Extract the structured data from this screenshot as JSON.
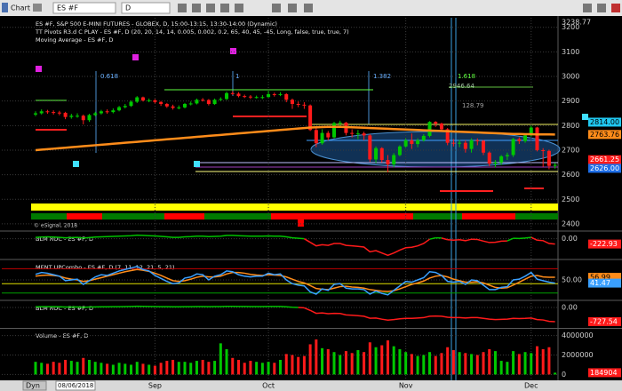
{
  "window": {
    "title": "Chart",
    "symbol": "ES #F",
    "interval": "D",
    "mode": "Dyn",
    "start_date": "08/06/2018"
  },
  "chart_data": [
    {
      "type": "candlestick",
      "title": "ES #F, S&P 500 E-MINI FUTURES - GLOBEX, D, 15:00-13:15, 13:30-14:00 (Dynamic)",
      "subtitles": [
        "TT Pivots R3.d C PLAY - ES #F, D (20, 20, 14, 14, 0.005, 0.002, 0.2, 65, 40, 45, -45, Long, false, true, true, 7)",
        "Moving Average - ES #F, D"
      ],
      "categories": [
        null,
        null,
        null,
        null,
        null,
        null,
        null,
        null,
        null,
        null,
        null,
        null,
        null,
        null,
        null,
        null,
        null,
        null,
        null,
        null,
        "Sep",
        null,
        null,
        null,
        null,
        null,
        null,
        null,
        null,
        null,
        null,
        null,
        null,
        null,
        null,
        null,
        null,
        null,
        null,
        "Oct",
        null,
        null,
        null,
        null,
        null,
        null,
        null,
        null,
        null,
        null,
        null,
        null,
        null,
        null,
        null,
        null,
        null,
        null,
        null,
        null,
        null,
        null,
        "Nov",
        null,
        null,
        null,
        null,
        null,
        null,
        null,
        null,
        null,
        null,
        null,
        null,
        null,
        null,
        null,
        null,
        null,
        null,
        null,
        null,
        "Dec",
        null,
        null,
        null,
        null
      ],
      "open": [
        2845,
        2850,
        2858,
        2855,
        2853,
        2852,
        2835,
        2840,
        2840,
        2822,
        2843,
        2850,
        2858,
        2855,
        2862,
        2875,
        2880,
        2897,
        2915,
        2902,
        2903,
        2896,
        2888,
        2878,
        2872,
        2874,
        2888,
        2890,
        2905,
        2904,
        2888,
        2905,
        2908,
        2932,
        2930,
        2920,
        2918,
        2915,
        2916,
        2916,
        2928,
        2925,
        2928,
        2905,
        2888,
        2885,
        2882,
        2782,
        2728,
        2770,
        2752,
        2810,
        2812,
        2770,
        2768,
        2768,
        2760,
        2662,
        2708,
        2660,
        2642,
        2680,
        2715,
        2740,
        2725,
        2740,
        2758,
        2815,
        2808,
        2785,
        2730,
        2728,
        2730,
        2705,
        2740,
        2738,
        2690,
        2645,
        2650,
        2675,
        2680,
        2745,
        2737,
        2760,
        2792,
        2700,
        2697,
        2636
      ],
      "high": [
        2858,
        2866,
        2864,
        2862,
        2860,
        2856,
        2848,
        2850,
        2845,
        2848,
        2856,
        2864,
        2866,
        2870,
        2880,
        2888,
        2902,
        2920,
        2918,
        2910,
        2908,
        2900,
        2892,
        2885,
        2882,
        2892,
        2898,
        2910,
        2912,
        2908,
        2910,
        2915,
        2938,
        2940,
        2936,
        2926,
        2924,
        2922,
        2924,
        2942,
        2934,
        2936,
        2932,
        2910,
        2898,
        2895,
        2886,
        2790,
        2785,
        2778,
        2815,
        2820,
        2815,
        2785,
        2782,
        2775,
        2765,
        2715,
        2712,
        2680,
        2688,
        2720,
        2748,
        2768,
        2748,
        2765,
        2818,
        2818,
        2812,
        2790,
        2745,
        2742,
        2740,
        2748,
        2748,
        2742,
        2695,
        2660,
        2680,
        2690,
        2750,
        2752,
        2765,
        2800,
        2795,
        2708,
        2702,
        2648
      ],
      "low": [
        2838,
        2845,
        2848,
        2845,
        2842,
        2826,
        2828,
        2832,
        2805,
        2815,
        2838,
        2845,
        2848,
        2850,
        2858,
        2870,
        2876,
        2892,
        2898,
        2895,
        2890,
        2880,
        2872,
        2865,
        2866,
        2870,
        2882,
        2886,
        2898,
        2882,
        2884,
        2900,
        2904,
        2925,
        2915,
        2912,
        2908,
        2910,
        2908,
        2914,
        2918,
        2920,
        2895,
        2868,
        2875,
        2868,
        2778,
        2712,
        2722,
        2740,
        2748,
        2795,
        2760,
        2752,
        2745,
        2740,
        2652,
        2648,
        2650,
        2610,
        2630,
        2675,
        2710,
        2705,
        2712,
        2735,
        2752,
        2795,
        2775,
        2720,
        2715,
        2712,
        2690,
        2690,
        2720,
        2680,
        2635,
        2630,
        2640,
        2660,
        2672,
        2725,
        2730,
        2755,
        2695,
        2632,
        2622,
        2625
      ],
      "close": [
        2850,
        2858,
        2855,
        2853,
        2852,
        2835,
        2840,
        2840,
        2822,
        2843,
        2850,
        2858,
        2855,
        2862,
        2875,
        2880,
        2897,
        2915,
        2902,
        2903,
        2896,
        2888,
        2878,
        2872,
        2874,
        2888,
        2890,
        2905,
        2904,
        2888,
        2905,
        2908,
        2932,
        2930,
        2920,
        2918,
        2915,
        2916,
        2916,
        2928,
        2925,
        2928,
        2905,
        2888,
        2885,
        2882,
        2782,
        2728,
        2770,
        2752,
        2810,
        2812,
        2770,
        2768,
        2768,
        2760,
        2662,
        2708,
        2660,
        2642,
        2680,
        2715,
        2740,
        2725,
        2740,
        2758,
        2815,
        2808,
        2785,
        2730,
        2728,
        2730,
        2705,
        2740,
        2738,
        2690,
        2645,
        2650,
        2675,
        2680,
        2745,
        2737,
        2760,
        2792,
        2700,
        2697,
        2636,
        2640
      ],
      "up_color": "#00c800",
      "down_color": "#ff1a1a",
      "moving_average": {
        "color": "#ff8c1a",
        "values": [
          2700,
          2702,
          2704,
          2706,
          2708,
          2710,
          2712,
          2714,
          2716,
          2718,
          2720,
          2722,
          2724,
          2726,
          2728,
          2730,
          2732,
          2734,
          2736,
          2738,
          2740,
          2742,
          2744,
          2746,
          2748,
          2750,
          2752,
          2754,
          2756,
          2758,
          2760,
          2762,
          2764,
          2766,
          2768,
          2770,
          2772,
          2774,
          2776,
          2778,
          2780,
          2782,
          2784,
          2786,
          2788,
          2790,
          2792,
          2793,
          2794,
          2795,
          2795,
          2795,
          2794,
          2793,
          2792,
          2791,
          2790,
          2789,
          2788,
          2787,
          2786,
          2785,
          2784,
          2783,
          2782,
          2781,
          2780,
          2779,
          2778,
          2777,
          2776,
          2775,
          2774,
          2773,
          2772,
          2771,
          2770,
          2769,
          2768,
          2767,
          2766,
          2766,
          2765,
          2765,
          2764,
          2764,
          2764,
          2763.76
        ]
      },
      "ylim": [
        2378,
        3238.77
      ],
      "ylim_label": "3238.77",
      "yticks": [
        2400,
        2500,
        2600,
        2700,
        2800,
        2900,
        3000,
        3100,
        3200
      ],
      "grid": true,
      "price_tags": [
        {
          "value": 2814,
          "label": "2814.00",
          "color": "#20c8f0"
        },
        {
          "value": 2661.25,
          "color": "#ff1a1a"
        },
        {
          "value": 2626,
          "label": "2626.00",
          "color": "#1e6ee8"
        }
      ],
      "annotations": [
        "0.618",
        "1",
        "1.382",
        "1.618",
        "2946.64",
        "128.79"
      ],
      "copyright": "© eSignal, 2018"
    },
    {
      "type": "line",
      "title": "BLM ROC - ES #F, D",
      "series": [
        {
          "color": "#00c000",
          "down_color": "#ff1a1a",
          "values": [
            60,
            70,
            80,
            70,
            60,
            40,
            50,
            60,
            30,
            50,
            70,
            80,
            90,
            100,
            110,
            120,
            130,
            150,
            140,
            130,
            120,
            100,
            80,
            60,
            60,
            80,
            90,
            110,
            110,
            90,
            100,
            110,
            140,
            140,
            130,
            120,
            110,
            110,
            110,
            120,
            110,
            110,
            80,
            40,
            20,
            0,
            -150,
            -300,
            -250,
            -280,
            -200,
            -200,
            -280,
            -300,
            -320,
            -350,
            -550,
            -500,
            -600,
            -700,
            -600,
            -480,
            -380,
            -360,
            -300,
            -200,
            -20,
            40,
            30,
            -40,
            -60,
            -40,
            -80,
            -20,
            -30,
            -100,
            -160,
            -150,
            -100,
            -90,
            20,
            10,
            30,
            60,
            -60,
            -80,
            -200,
            -222.93
          ]
        }
      ],
      "ylim": [
        -800,
        250
      ],
      "yticks": [
        {
          "value": 0,
          "label": "0.00"
        }
      ],
      "grid": true
    },
    {
      "type": "line",
      "title": "MENT UPCombo - ES #F, D (7, 11, 12, 21, 5, 21)",
      "series": [
        {
          "color": "#ff8c1a",
          "values": [
            60,
            62,
            63,
            62,
            60,
            55,
            52,
            50,
            46,
            48,
            52,
            56,
            60,
            64,
            68,
            72,
            75,
            78,
            76,
            73,
            68,
            62,
            55,
            48,
            46,
            48,
            52,
            57,
            60,
            58,
            58,
            60,
            66,
            70,
            70,
            68,
            65,
            63,
            62,
            64,
            63,
            62,
            58,
            52,
            46,
            42,
            35,
            27,
            25,
            24,
            28,
            32,
            33,
            31,
            30,
            28,
            24,
            22,
            20,
            19,
            21,
            26,
            32,
            38,
            42,
            47,
            55,
            60,
            62,
            58,
            52,
            48,
            44,
            44,
            45,
            42,
            36,
            30,
            28,
            29,
            36,
            44,
            52,
            60,
            62,
            58,
            57,
            56.99
          ]
        },
        {
          "color": "#3aa0ff",
          "values": [
            65,
            70,
            68,
            64,
            60,
            48,
            50,
            52,
            38,
            48,
            58,
            64,
            62,
            68,
            74,
            78,
            82,
            86,
            78,
            74,
            62,
            54,
            46,
            40,
            42,
            55,
            58,
            66,
            64,
            50,
            60,
            64,
            74,
            72,
            64,
            60,
            58,
            60,
            60,
            68,
            64,
            66,
            50,
            40,
            36,
            34,
            18,
            12,
            26,
            22,
            38,
            40,
            28,
            26,
            26,
            24,
            12,
            20,
            14,
            10,
            22,
            34,
            46,
            44,
            50,
            56,
            72,
            70,
            62,
            46,
            44,
            46,
            38,
            50,
            48,
            36,
            24,
            24,
            30,
            32,
            50,
            52,
            60,
            70,
            52,
            48,
            44,
            41.47
          ]
        }
      ],
      "levels": [
        {
          "value": 80,
          "color": "#c00000"
        },
        {
          "value": 40,
          "color": "#e0e000"
        },
        {
          "value": 15,
          "color": "#00a000"
        }
      ],
      "ylim": [
        0,
        100
      ],
      "yticks": [
        {
          "value": 50,
          "label": "50.00"
        }
      ],
      "grid": true
    },
    {
      "type": "line",
      "title": "BLM ROC - ES #F, D",
      "series": [
        {
          "color": "#00c000",
          "down_color": "#ff1a1a",
          "values": [
            30,
            35,
            40,
            35,
            30,
            20,
            22,
            25,
            10,
            18,
            25,
            30,
            32,
            35,
            40,
            45,
            50,
            60,
            55,
            50,
            45,
            40,
            35,
            30,
            30,
            35,
            40,
            45,
            45,
            40,
            42,
            45,
            55,
            55,
            50,
            48,
            45,
            45,
            45,
            50,
            48,
            48,
            30,
            10,
            0,
            -20,
            -150,
            -300,
            -280,
            -320,
            -300,
            -310,
            -380,
            -400,
            -420,
            -450,
            -550,
            -540,
            -600,
            -650,
            -620,
            -580,
            -560,
            -560,
            -540,
            -520,
            -450,
            -440,
            -450,
            -500,
            -520,
            -520,
            -540,
            -520,
            -520,
            -560,
            -600,
            -620,
            -610,
            -600,
            -560,
            -570,
            -560,
            -540,
            -620,
            -640,
            -710,
            -727.54
          ]
        }
      ],
      "ylim": [
        -1000,
        270
      ],
      "yticks": [
        {
          "value": 0,
          "label": "0.00"
        }
      ],
      "grid": true
    },
    {
      "type": "bar",
      "title": "Volume - ES #F, D",
      "values": [
        1300000,
        1200000,
        1100000,
        1300000,
        1200000,
        1500000,
        1400000,
        1300000,
        1700000,
        1500000,
        1300000,
        1200000,
        1100000,
        1000000,
        1200000,
        1100000,
        1000000,
        1300000,
        1100000,
        1000000,
        900000,
        1200000,
        1400000,
        1500000,
        1300000,
        1300000,
        1200000,
        1400000,
        1500000,
        1300000,
        1400000,
        3200000,
        2600000,
        1700000,
        1500000,
        1200000,
        1400000,
        1300000,
        1200000,
        1300000,
        1200000,
        1500000,
        2100000,
        2000000,
        1800000,
        1900000,
        3100000,
        3600000,
        2700000,
        2600000,
        2300000,
        2000000,
        2400000,
        2200000,
        2500000,
        2300000,
        3300000,
        2800000,
        3000000,
        3500000,
        2900000,
        2600000,
        2300000,
        2100000,
        1900000,
        2000000,
        2300000,
        1900000,
        2200000,
        2800000,
        2500000,
        2300000,
        2200000,
        2100000,
        2000000,
        2300000,
        2600000,
        2400000,
        1400000,
        1300000,
        2400000,
        2100000,
        2300000,
        2200000,
        2900000,
        2600000,
        2800000,
        184904
      ],
      "up_color": "#00c800",
      "down_color": "#ff1a1a",
      "tag_color": "#ff1a1a",
      "ylim": [
        -600000,
        4600000
      ],
      "yticks": [
        0,
        2000000,
        4000000
      ],
      "grid": true
    }
  ]
}
